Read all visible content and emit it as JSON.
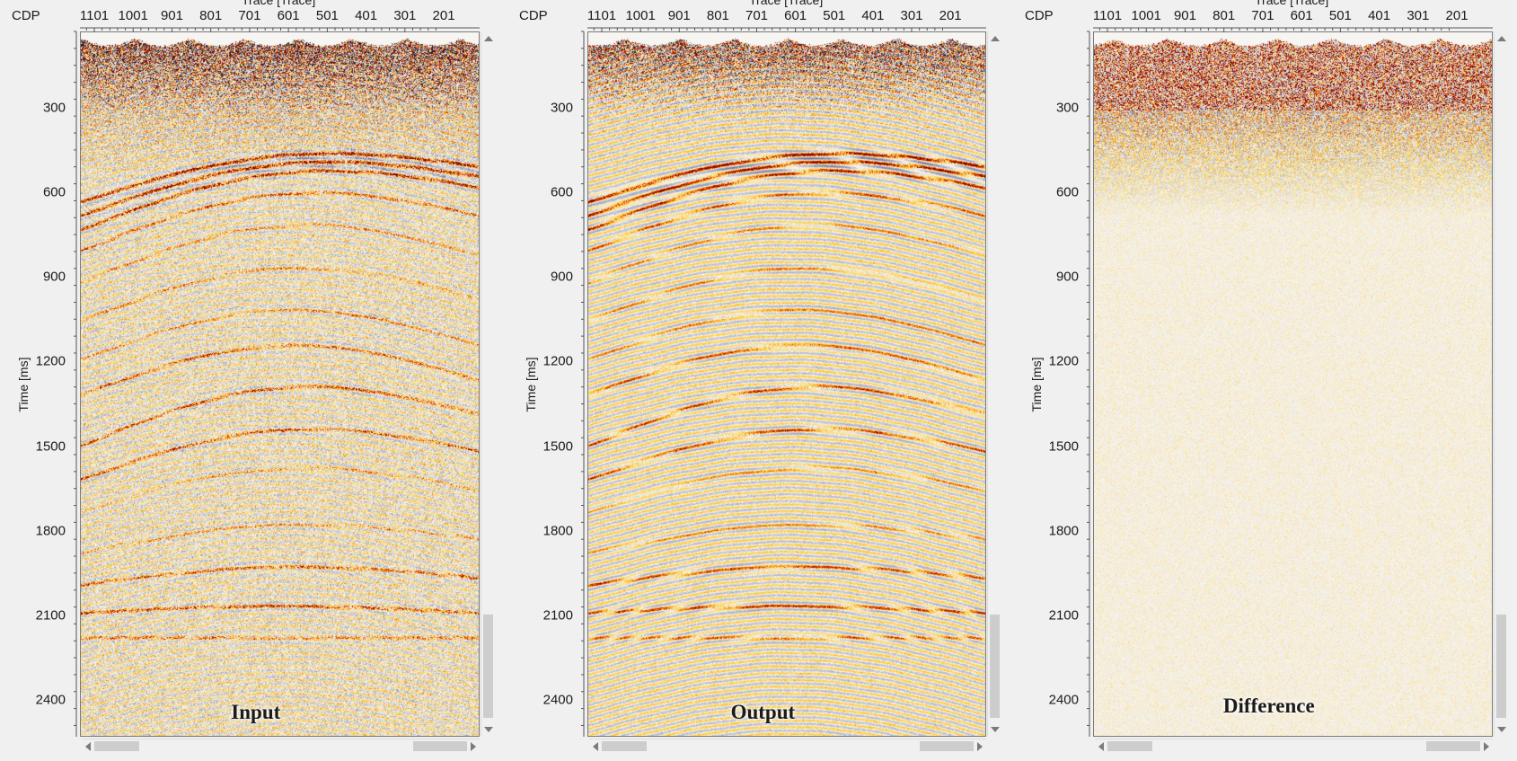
{
  "panels": [
    {
      "id": "input",
      "cdp_label": "CDP",
      "x_axis_title": "Trace [Trace]",
      "y_axis_title": "Time [ms]",
      "panel_label": "Input",
      "x_ticks": [
        "1101",
        "1001",
        "901",
        "801",
        "701",
        "601",
        "501",
        "401",
        "301",
        "201"
      ],
      "y_ticks": [
        "300",
        "600",
        "900",
        "1200",
        "1500",
        "1800",
        "2100",
        "2400"
      ]
    },
    {
      "id": "output",
      "cdp_label": "CDP",
      "x_axis_title": "Trace [Trace]",
      "y_axis_title": "Time [ms]",
      "panel_label": "Output",
      "x_ticks": [
        "1101",
        "1001",
        "901",
        "801",
        "701",
        "601",
        "501",
        "401",
        "301",
        "201"
      ],
      "y_ticks": [
        "300",
        "600",
        "900",
        "1200",
        "1500",
        "1800",
        "2100",
        "2400"
      ]
    },
    {
      "id": "difference",
      "cdp_label": "CDP",
      "x_axis_title": "Trace [Trace]",
      "y_axis_title": "Time [ms]",
      "panel_label": "Difference",
      "x_ticks": [
        "1101",
        "1001",
        "901",
        "801",
        "701",
        "601",
        "501",
        "401",
        "301",
        "201"
      ],
      "y_ticks": [
        "300",
        "600",
        "900",
        "1200",
        "1500",
        "1800",
        "2100",
        "2400"
      ]
    }
  ],
  "axis": {
    "x_first_trace": 1101,
    "x_last_trace": 201,
    "x_step": 100,
    "time_min_ms": 30,
    "time_max_ms": 2530,
    "time_step_ms": 300
  },
  "colors": {
    "positive_strong": "#7a0000",
    "positive_mid": "#d92b00",
    "positive_weak": "#ffcc33",
    "negative_strong": "#1a1a28",
    "negative_weak": "#9aa0bc",
    "background": "#f7f5f2"
  },
  "icons": {
    "scroll_up": "triangle-up-icon",
    "scroll_down": "triangle-down-icon",
    "scroll_left": "triangle-left-icon",
    "scroll_right": "triangle-right-icon"
  }
}
